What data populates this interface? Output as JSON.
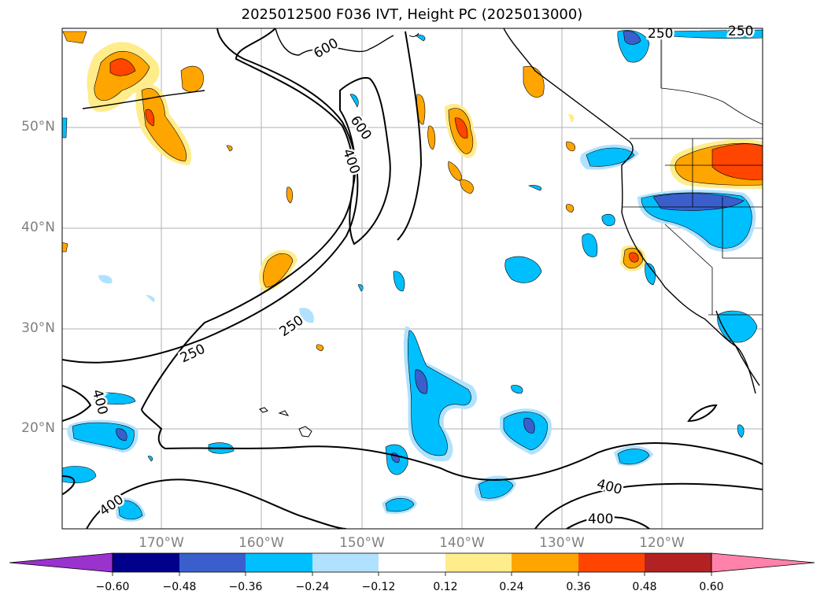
{
  "title": "2025012500 F036 IVT, Height PC (2025013000)",
  "lat_labels": [
    "50°N",
    "40°N",
    "30°N",
    "20°N"
  ],
  "lon_labels": [
    "170°W",
    "160°W",
    "150°W",
    "140°W",
    "130°W",
    "120°W"
  ],
  "contour_labels": [
    "250",
    "250",
    "250",
    "250",
    "400",
    "400",
    "400",
    "400",
    "400",
    "600",
    "600"
  ],
  "colorbar": {
    "ticks": [
      "−0.60",
      "−0.48",
      "−0.36",
      "−0.24",
      "−0.12",
      "0.12",
      "0.24",
      "0.36",
      "0.48",
      "0.60"
    ],
    "colors": [
      "#9a32cd",
      "#00008b",
      "#3a5fcd",
      "#00bfff",
      "#b0e2ff",
      "#ffffff",
      "#ffec8b",
      "#ffa500",
      "#ff4500",
      "#b22222",
      "#ff82ab"
    ]
  }
}
